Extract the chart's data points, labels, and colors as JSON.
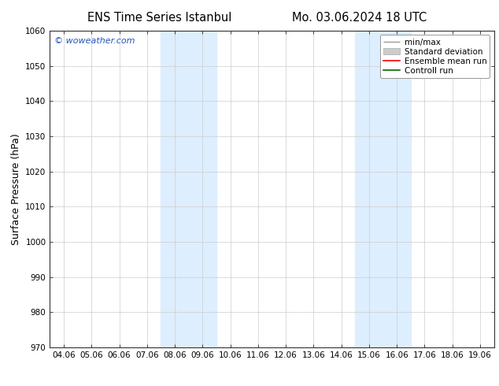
{
  "title_left": "ENS Time Series Istanbul",
  "title_right": "Mo. 03.06.2024 18 UTC",
  "ylabel": "Surface Pressure (hPa)",
  "ylim": [
    970,
    1060
  ],
  "yticks": [
    970,
    980,
    990,
    1000,
    1010,
    1020,
    1030,
    1040,
    1050,
    1060
  ],
  "xlabel_dates": [
    "04.06",
    "05.06",
    "06.06",
    "07.06",
    "08.06",
    "09.06",
    "10.06",
    "11.06",
    "12.06",
    "13.06",
    "14.06",
    "15.06",
    "16.06",
    "17.06",
    "18.06",
    "19.06"
  ],
  "watermark": "© woweather.com",
  "watermark_color": "#2255bb",
  "background_color": "#ffffff",
  "plot_bg_color": "#ffffff",
  "shaded_band_color": "#ddeeff",
  "shaded_bands": [
    {
      "xstart": 4,
      "xend": 5
    },
    {
      "xstart": 11,
      "xend": 12
    }
  ],
  "legend_items": [
    {
      "label": "min/max",
      "color": "#aaaaaa"
    },
    {
      "label": "Standard deviation",
      "color": "#cccccc"
    },
    {
      "label": "Ensemble mean run",
      "color": "#ff0000"
    },
    {
      "label": "Controll run",
      "color": "#006600"
    }
  ],
  "grid_color": "#cccccc",
  "grid_lw": 0.5,
  "tick_label_fontsize": 7.5,
  "axis_label_fontsize": 9,
  "title_fontsize": 10.5
}
